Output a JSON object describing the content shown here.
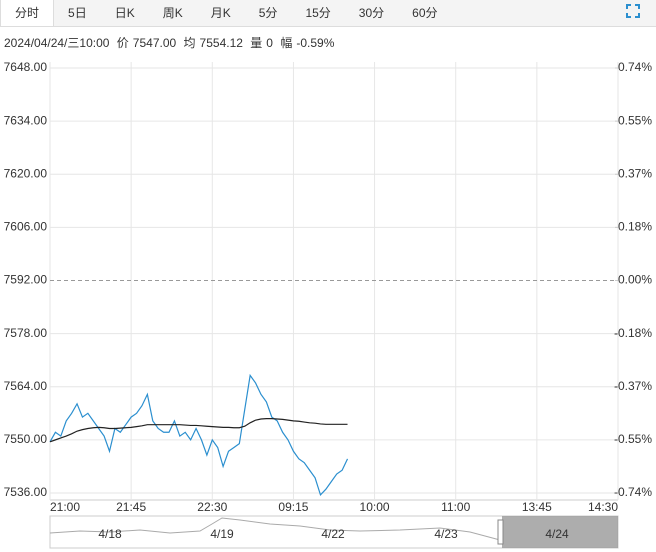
{
  "tabs": [
    "分时",
    "5日",
    "日K",
    "周K",
    "月K",
    "5分",
    "15分",
    "30分",
    "60分"
  ],
  "selected_tab": 0,
  "info": {
    "date": "2024/04/24/三10:00",
    "price_label": "价",
    "price": "7547.00",
    "avg_label": "均",
    "avg": "7554.12",
    "volume_label": "量",
    "volume": "0",
    "change_label": "幅",
    "change": "-0.59%"
  },
  "navigator": {
    "labels": [
      "4/18",
      "4/19",
      "4/22",
      "4/23",
      "4/24"
    ]
  },
  "chart_data": {
    "type": "line",
    "x": [
      0,
      3,
      6,
      9,
      12,
      15,
      18,
      21,
      24,
      27,
      30,
      33,
      36,
      39,
      42,
      45,
      48,
      51,
      54,
      57,
      60,
      63,
      66,
      69,
      72,
      75,
      78,
      81,
      84,
      87,
      90,
      93,
      96,
      99,
      102,
      105,
      108,
      111,
      114,
      117,
      120,
      123,
      126,
      129,
      132,
      135,
      138,
      141,
      144,
      147,
      150,
      153,
      156,
      159,
      162,
      165
    ],
    "xlim": [
      0,
      315
    ],
    "xticks": [
      {
        "value": 0,
        "label": "21:00"
      },
      {
        "value": 45,
        "label": "21:45"
      },
      {
        "value": 90,
        "label": "22:30"
      },
      {
        "value": 135,
        "label": "09:15"
      },
      {
        "value": 180,
        "label": "10:00"
      },
      {
        "value": 225,
        "label": "11:00"
      },
      {
        "value": 270,
        "label": "13:45"
      },
      {
        "value": 315,
        "label": "14:30"
      }
    ],
    "ylim": [
      7536,
      7648
    ],
    "yticks": [
      {
        "value": 7648,
        "label": "7648.00"
      },
      {
        "value": 7634,
        "label": "7634.00"
      },
      {
        "value": 7620,
        "label": "7620.00"
      },
      {
        "value": 7606,
        "label": "7606.00"
      },
      {
        "value": 7592,
        "label": "7592.00"
      },
      {
        "value": 7578,
        "label": "7578.00"
      },
      {
        "value": 7564,
        "label": "7564.00"
      },
      {
        "value": 7550,
        "label": "7550.00"
      },
      {
        "value": 7536,
        "label": "7536.00"
      }
    ],
    "y2lim": [
      -0.7376,
      0.7376
    ],
    "y2ticks": [
      {
        "value": 0.7376,
        "label": "0.74%"
      },
      {
        "value": 0.5532,
        "label": "0.55%"
      },
      {
        "value": 0.3688,
        "label": "0.37%"
      },
      {
        "value": 0.1844,
        "label": "0.18%"
      },
      {
        "value": 0,
        "label": "0.00%"
      },
      {
        "value": -0.1844,
        "label": "-0.18%"
      },
      {
        "value": -0.3688,
        "label": "-0.37%"
      },
      {
        "value": -0.5532,
        "label": "-0.55%"
      },
      {
        "value": -0.7376,
        "label": "-0.74%"
      }
    ],
    "grid": true,
    "colors": {
      "up": "#e0201c",
      "down": "#17a01c",
      "flat": "#444444"
    },
    "series": [
      {
        "color": "#2b8fcf",
        "values": [
          7549.5,
          7552,
          7551,
          7555,
          7557,
          7559.5,
          7556,
          7557,
          7555,
          7553,
          7551,
          7547,
          7553,
          7552,
          7554,
          7556,
          7557,
          7559,
          7562,
          7555,
          7553,
          7552,
          7552,
          7555,
          7551,
          7552,
          7550,
          7553,
          7550,
          7546,
          7550,
          7548,
          7543,
          7547,
          7548,
          7549,
          7558,
          7567,
          7565,
          7562,
          7560,
          7556,
          7555,
          7552,
          7550,
          7547,
          7545,
          7544,
          7542,
          7540,
          7535.5,
          7537,
          7539,
          7541,
          7542,
          7545
        ]
      },
      {
        "color": "#222222",
        "values": [
          7549.5,
          7550,
          7550.5,
          7551,
          7551.6,
          7552.3,
          7552.7,
          7553,
          7553.2,
          7553.3,
          7553.2,
          7553,
          7553,
          7553.1,
          7553.2,
          7553.3,
          7553.5,
          7553.7,
          7554,
          7554,
          7554,
          7554,
          7554,
          7554,
          7554,
          7553.9,
          7553.8,
          7553.8,
          7553.7,
          7553.6,
          7553.5,
          7553.4,
          7553.3,
          7553.3,
          7553.2,
          7553.2,
          7553.6,
          7554.5,
          7555.2,
          7555.5,
          7555.6,
          7555.6,
          7555.5,
          7555.4,
          7555.2,
          7555,
          7554.9,
          7554.7,
          7554.5,
          7554.4,
          7554.2,
          7554.1,
          7554.1,
          7554.1,
          7554.1,
          7554.1
        ]
      }
    ]
  }
}
